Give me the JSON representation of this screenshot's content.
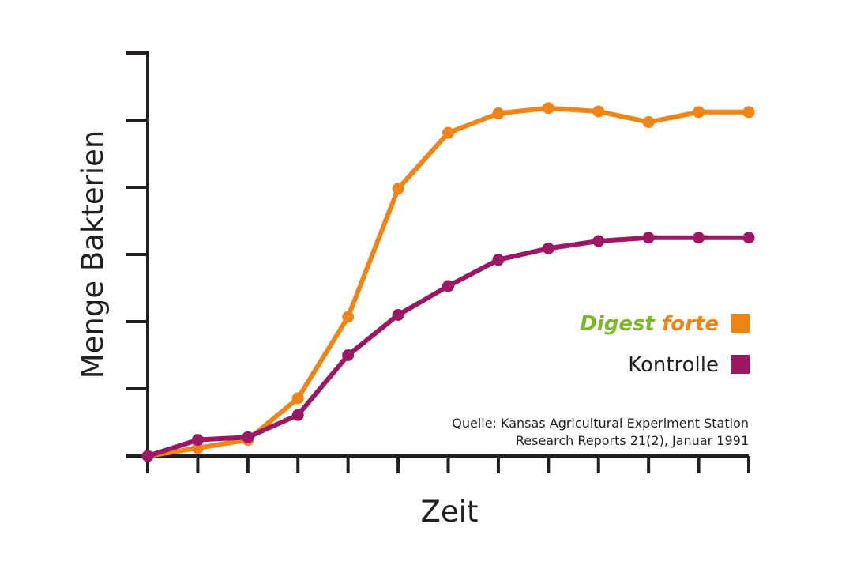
{
  "chart_data": {
    "type": "line",
    "title": "",
    "xlabel": "Zeit",
    "ylabel": "Menge Bakterien",
    "x": [
      0,
      1,
      2,
      3,
      4,
      5,
      6,
      7,
      8,
      9,
      10,
      11,
      12
    ],
    "xlim": [
      0,
      12
    ],
    "ylim": [
      0,
      6
    ],
    "x_tick_count": 13,
    "y_tick_count": 7,
    "grid": false,
    "legend_position": "right",
    "series": [
      {
        "name_part1": "Digest",
        "name_part2": "forte",
        "color": "#f08415",
        "name_color_part1": "#7ab829",
        "name_color_part2": "#f08415",
        "values": [
          0,
          0.12,
          0.24,
          0.86,
          2.07,
          3.98,
          4.81,
          5.1,
          5.18,
          5.13,
          4.97,
          5.12,
          5.12
        ]
      },
      {
        "name": "Kontrolle",
        "color": "#9c1764",
        "name_color": "#231f20",
        "values": [
          0,
          0.24,
          0.28,
          0.61,
          1.5,
          2.1,
          2.53,
          2.92,
          3.09,
          3.2,
          3.25,
          3.25,
          3.25
        ]
      }
    ],
    "source": {
      "line1": "Quelle: Kansas Agricultural Experiment Station",
      "line2": "Research Reports 21(2), Januar 1991"
    },
    "axis_color": "#231f20"
  }
}
